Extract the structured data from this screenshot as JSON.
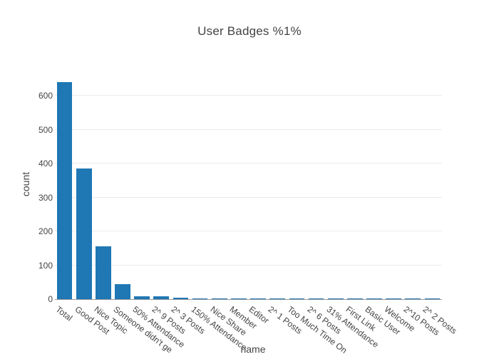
{
  "title": "User Badges %1%",
  "chart_data": {
    "type": "bar",
    "title": "User Badges %1%",
    "xlabel": "name",
    "ylabel": "count",
    "categories": [
      "Total",
      "Good Post",
      "Nice Topic",
      "Someone didn't ge",
      "50% Attendance",
      "2^ 9 Posts",
      "2^ 3 Posts",
      "150% Attendance",
      "Nice Share",
      "Member",
      "Editor",
      "2^ 1 Posts",
      "Too Much Time On",
      "2^ 6 Posts",
      "31% Attendance",
      "First Link",
      "Basic User",
      "Welcome",
      "2^10 Posts",
      "2^ 2 Posts"
    ],
    "values": [
      640,
      385,
      155,
      45,
      9,
      8,
      4,
      2,
      2,
      2,
      2,
      2,
      2,
      2,
      2,
      2,
      2,
      2,
      2,
      2
    ],
    "y_ticks": [
      0,
      100,
      200,
      300,
      400,
      500,
      600
    ],
    "ylim": [
      0,
      678
    ],
    "grid": true,
    "legend": "none",
    "tick_angle_deg": 37
  },
  "colors": {
    "bar": "#1f77b4",
    "text": "#444444",
    "grid": "#ebebeb",
    "axis_line": "#9a9a9a",
    "background": "#ffffff"
  }
}
